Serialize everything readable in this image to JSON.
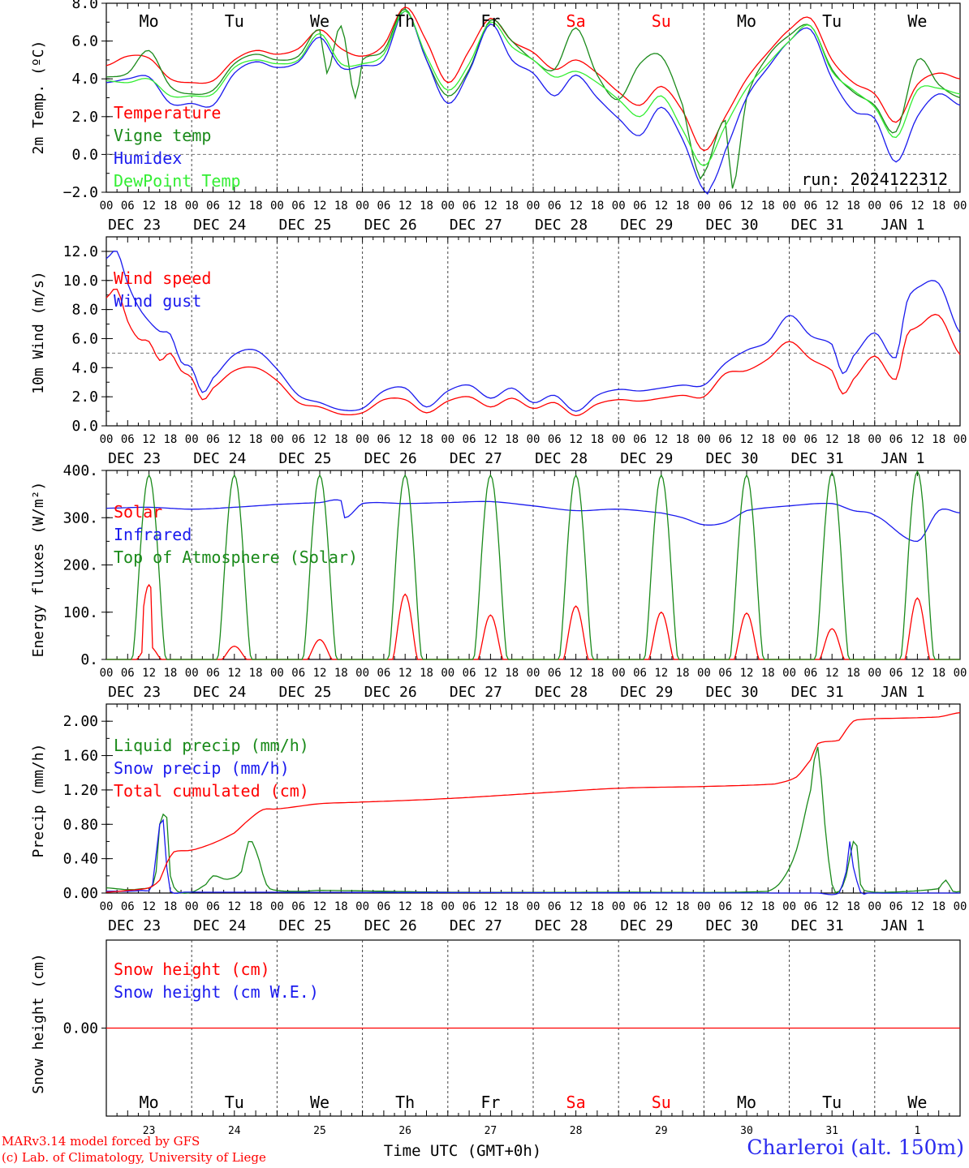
{
  "run_label": "run: 2024122312",
  "station": "Charleroi (alt. 150m)",
  "footer_credits": [
    "MARv3.14 model forced by GFS",
    "(c) Lab. of Climatology, University of Liege"
  ],
  "time_axis_label": "Time UTC (GMT+0h)",
  "day_names": [
    "Mo",
    "Tu",
    "We",
    "Th",
    "Fr",
    "Sa",
    "Su",
    "Mo",
    "Tu",
    "We"
  ],
  "weekend_days": [
    "Sa",
    "Su"
  ],
  "date_labels": [
    "DEC 23",
    "DEC 24",
    "DEC 25",
    "DEC 26",
    "DEC 27",
    "DEC 28",
    "DEC 29",
    "DEC 30",
    "DEC 31",
    "JAN  1"
  ],
  "day_numbers": [
    "23",
    "24",
    "25",
    "26",
    "27",
    "28",
    "29",
    "30",
    "31",
    "1"
  ],
  "hour_ticks": [
    "00",
    "06",
    "12",
    "18"
  ],
  "colors": {
    "red": "#ff0000",
    "green": "#1a8a1a",
    "blue": "#1a1aee",
    "lightgreen": "#33ee33",
    "grid": "#555555"
  },
  "chart_data": [
    {
      "type": "line",
      "ylabel": "2m Temp. (ºC)",
      "ylim": [
        -2,
        8
      ],
      "yticks": [
        "−2.0",
        "0.0",
        "2.0",
        "4.0",
        "6.0",
        "8.0"
      ],
      "ytick_values": [
        -2,
        0,
        2,
        4,
        6,
        8
      ],
      "reference_line": 0,
      "x_unit": "hours since 2024-12-23 00 UTC",
      "series": [
        {
          "name": "Temperature",
          "color": "#ff0000",
          "x": [
            0,
            6,
            12,
            18,
            24,
            30,
            36,
            42,
            48,
            54,
            60,
            66,
            72,
            78,
            84,
            90,
            96,
            102,
            108,
            114,
            120,
            126,
            132,
            138,
            144,
            150,
            156,
            162,
            168,
            174,
            180,
            186,
            192,
            198,
            204,
            210,
            216,
            222,
            228,
            234,
            240
          ],
          "values": [
            4.7,
            5.2,
            5.1,
            4.0,
            3.8,
            3.9,
            5.0,
            5.5,
            5.3,
            5.6,
            6.6,
            5.6,
            5.2,
            5.8,
            7.8,
            6.0,
            3.8,
            5.5,
            7.2,
            6.0,
            5.4,
            4.5,
            5.0,
            4.3,
            3.3,
            2.6,
            3.6,
            2.3,
            0.2,
            2.0,
            4.0,
            5.4,
            6.6,
            7.2,
            5.0,
            3.8,
            3.2,
            1.7,
            3.7,
            4.3,
            4.0
          ]
        },
        {
          "name": "Vigne temp",
          "color": "#1a8a1a",
          "x": [
            0,
            6,
            12,
            18,
            24,
            30,
            36,
            42,
            48,
            54,
            60,
            62,
            66,
            70,
            72,
            78,
            84,
            90,
            96,
            102,
            108,
            114,
            120,
            126,
            132,
            138,
            144,
            150,
            156,
            162,
            166,
            168,
            174,
            176,
            180,
            186,
            192,
            198,
            204,
            210,
            216,
            222,
            228,
            234,
            240
          ],
          "values": [
            4.1,
            4.3,
            5.5,
            3.6,
            3.2,
            3.4,
            4.8,
            5.3,
            5.0,
            5.2,
            6.6,
            4.3,
            6.8,
            3.0,
            5.0,
            5.5,
            7.7,
            5.0,
            3.1,
            4.5,
            7.1,
            6.0,
            5.0,
            4.5,
            6.7,
            4.2,
            2.9,
            4.8,
            5.2,
            2.6,
            -0.8,
            -1.0,
            1.8,
            -1.8,
            3.0,
            5.2,
            6.3,
            6.8,
            4.5,
            3.3,
            2.6,
            1.2,
            5.0,
            3.7,
            3.0
          ]
        },
        {
          "name": "Humidex",
          "color": "#1a1aee",
          "x": [
            0,
            6,
            12,
            18,
            24,
            30,
            36,
            42,
            48,
            54,
            60,
            66,
            72,
            78,
            84,
            90,
            96,
            102,
            108,
            114,
            120,
            126,
            132,
            138,
            144,
            150,
            156,
            162,
            168,
            170,
            174,
            180,
            186,
            192,
            198,
            204,
            210,
            216,
            222,
            228,
            234,
            240
          ],
          "values": [
            3.8,
            4.0,
            4.1,
            2.7,
            2.7,
            2.6,
            4.3,
            4.9,
            4.6,
            4.9,
            6.2,
            4.6,
            4.7,
            5.0,
            7.6,
            5.0,
            2.7,
            4.4,
            6.9,
            5.0,
            4.3,
            3.1,
            4.2,
            3.0,
            1.9,
            1.0,
            2.5,
            0.8,
            -1.9,
            -1.7,
            0.2,
            3.0,
            4.6,
            6.0,
            6.6,
            4.0,
            2.3,
            1.9,
            -0.4,
            2.0,
            3.2,
            2.6
          ]
        },
        {
          "name": "DewPoint Temp",
          "color": "#33ee33",
          "x": [
            0,
            6,
            12,
            18,
            24,
            30,
            36,
            42,
            48,
            54,
            60,
            66,
            72,
            78,
            84,
            90,
            96,
            102,
            108,
            114,
            120,
            126,
            132,
            138,
            144,
            150,
            156,
            162,
            168,
            174,
            180,
            186,
            192,
            198,
            204,
            210,
            216,
            222,
            228,
            234,
            240
          ],
          "values": [
            3.9,
            3.8,
            4.0,
            3.1,
            3.1,
            3.2,
            4.6,
            5.0,
            4.8,
            5.0,
            6.4,
            4.8,
            4.8,
            5.3,
            7.6,
            5.2,
            3.4,
            4.8,
            7.0,
            5.7,
            5.0,
            4.1,
            4.4,
            3.8,
            2.9,
            2.0,
            3.1,
            1.3,
            -0.6,
            1.5,
            3.5,
            4.8,
            6.0,
            6.8,
            4.4,
            3.4,
            2.5,
            0.9,
            3.4,
            3.5,
            3.2
          ]
        }
      ]
    },
    {
      "type": "line",
      "ylabel": "10m Wind (m/s)",
      "ylim": [
        0,
        13
      ],
      "yticks": [
        "0.0",
        "2.0",
        "4.0",
        "6.0",
        "8.0",
        "10.0",
        "12.0"
      ],
      "ytick_values": [
        0,
        2,
        4,
        6,
        8,
        10,
        12
      ],
      "reference_line": 5,
      "x_unit": "hours since 2024-12-23 00 UTC",
      "series": [
        {
          "name": "Wind speed",
          "color": "#ff0000",
          "x": [
            0,
            3,
            6,
            9,
            12,
            15,
            18,
            21,
            24,
            27,
            30,
            36,
            42,
            48,
            54,
            60,
            66,
            72,
            78,
            84,
            90,
            96,
            102,
            108,
            114,
            120,
            126,
            132,
            138,
            144,
            150,
            156,
            162,
            168,
            174,
            180,
            186,
            192,
            198,
            204,
            207,
            210,
            216,
            222,
            225,
            228,
            234,
            240
          ],
          "values": [
            8.8,
            9.4,
            7.2,
            6.0,
            5.8,
            4.5,
            5.0,
            3.8,
            3.3,
            1.8,
            2.6,
            3.8,
            4.0,
            3.1,
            1.6,
            1.3,
            0.8,
            0.9,
            1.8,
            1.8,
            0.9,
            1.7,
            2.0,
            1.3,
            1.9,
            1.2,
            1.6,
            0.7,
            1.5,
            1.8,
            1.7,
            1.9,
            2.1,
            2.0,
            3.6,
            3.8,
            4.6,
            5.8,
            4.6,
            3.8,
            2.2,
            3.2,
            4.8,
            3.2,
            6.2,
            6.8,
            7.6,
            4.9
          ]
        },
        {
          "name": "Wind gust",
          "color": "#1a1aee",
          "x": [
            0,
            3,
            6,
            9,
            12,
            15,
            18,
            21,
            24,
            27,
            30,
            36,
            42,
            48,
            54,
            60,
            66,
            72,
            78,
            84,
            90,
            96,
            102,
            108,
            114,
            120,
            126,
            132,
            138,
            144,
            150,
            156,
            162,
            168,
            174,
            180,
            186,
            192,
            198,
            204,
            207,
            210,
            216,
            222,
            225,
            228,
            234,
            240
          ],
          "values": [
            11.5,
            12.0,
            9.8,
            8.2,
            7.2,
            6.5,
            6.3,
            4.4,
            4.0,
            2.3,
            3.3,
            4.9,
            5.2,
            3.9,
            2.1,
            1.6,
            1.1,
            1.2,
            2.4,
            2.6,
            1.3,
            2.4,
            2.8,
            1.9,
            2.6,
            1.6,
            2.1,
            1.0,
            2.1,
            2.5,
            2.4,
            2.6,
            2.8,
            2.8,
            4.3,
            5.2,
            5.8,
            7.6,
            6.2,
            5.6,
            3.6,
            4.8,
            6.4,
            4.7,
            8.5,
            9.5,
            9.8,
            6.4
          ]
        }
      ]
    },
    {
      "type": "line",
      "ylabel": "Energy fluxes (W/m²)",
      "ylim": [
        0,
        400
      ],
      "yticks": [
        "0.",
        "100.",
        "200.",
        "300.",
        "400."
      ],
      "ytick_values": [
        0,
        100,
        200,
        300,
        400
      ],
      "x_unit": "hours since 2024-12-23 00 UTC",
      "series": [
        {
          "name": "Solar",
          "color": "#ff0000",
          "daily_peaks": [
            158,
            28,
            42,
            138,
            94,
            113,
            100,
            98,
            65,
            130
          ]
        },
        {
          "name": "Infrared",
          "color": "#1a1aee",
          "x": [
            0,
            12,
            24,
            36,
            48,
            60,
            66,
            67,
            72,
            84,
            96,
            108,
            120,
            132,
            144,
            156,
            162,
            168,
            174,
            180,
            192,
            204,
            210,
            216,
            228,
            234,
            240
          ],
          "values": [
            320,
            322,
            318,
            322,
            328,
            332,
            336,
            300,
            330,
            330,
            332,
            334,
            325,
            315,
            318,
            310,
            300,
            285,
            290,
            315,
            325,
            330,
            315,
            305,
            250,
            315,
            310
          ]
        },
        {
          "name": "Top of Atmosphere (Solar)",
          "color": "#1a8a1a",
          "daily_peaks": [
            390,
            390,
            390,
            390,
            390,
            390,
            390,
            390,
            395,
            398
          ]
        }
      ]
    },
    {
      "type": "line",
      "ylabel": "Precip (mm/h)",
      "ylim": [
        0,
        2.2
      ],
      "yticks": [
        "0.00",
        "0.40",
        "0.80",
        "1.20",
        "1.60",
        "2.00"
      ],
      "ytick_values": [
        0,
        0.4,
        0.8,
        1.2,
        1.6,
        2.0
      ],
      "x_unit": "hours since 2024-12-23 00 UTC",
      "series": [
        {
          "name": "Liquid precip (mm/h)",
          "color": "#1a8a1a",
          "x": [
            0,
            6,
            10,
            13,
            14,
            15,
            17,
            18,
            20,
            24,
            28,
            30,
            34,
            38,
            40,
            42,
            45,
            48,
            55,
            60,
            96,
            144,
            186,
            190,
            194,
            198,
            200,
            202,
            204,
            206,
            208,
            210,
            211,
            212,
            214,
            220,
            234,
            236,
            238,
            240
          ],
          "values": [
            0.06,
            0.04,
            0.05,
            0.08,
            0.25,
            0.8,
            0.88,
            0.2,
            0.02,
            0.01,
            0.1,
            0.2,
            0.16,
            0.25,
            0.6,
            0.5,
            0.1,
            0.03,
            0.02,
            0.03,
            0.01,
            0.01,
            0.02,
            0.15,
            0.5,
            1.2,
            1.7,
            0.8,
            0.1,
            0.02,
            0.2,
            0.6,
            0.55,
            0.1,
            0.02,
            0.01,
            0.05,
            0.15,
            0.02,
            0.02
          ]
        },
        {
          "name": "Snow precip (mm/h)",
          "color": "#1a1aee",
          "x": [
            0,
            10,
            13,
            15,
            16,
            17,
            18,
            22,
            24,
            200,
            206,
            208,
            209,
            210,
            212,
            214,
            240
          ],
          "values": [
            0.02,
            0.03,
            0.1,
            0.8,
            0.85,
            0.3,
            0.02,
            0.01,
            0.01,
            0.0,
            0.0,
            0.25,
            0.6,
            0.3,
            0.01,
            0.0,
            0.0
          ]
        },
        {
          "name": "Total cumulated (cm)",
          "color": "#ff0000",
          "x": [
            0,
            6,
            12,
            15,
            17,
            19,
            24,
            30,
            36,
            40,
            44,
            48,
            60,
            72,
            96,
            120,
            144,
            168,
            188,
            194,
            198,
            200,
            206,
            208,
            210,
            212,
            216,
            234,
            240
          ],
          "values": [
            0.01,
            0.03,
            0.06,
            0.15,
            0.35,
            0.48,
            0.5,
            0.58,
            0.7,
            0.85,
            0.97,
            0.98,
            1.04,
            1.06,
            1.1,
            1.16,
            1.22,
            1.24,
            1.27,
            1.35,
            1.55,
            1.74,
            1.78,
            1.9,
            2.0,
            2.02,
            2.03,
            2.05,
            2.1
          ]
        }
      ]
    },
    {
      "type": "line",
      "ylabel": "Snow height (cm)",
      "ylim": [
        -1,
        1
      ],
      "yticks": [
        "0.00"
      ],
      "ytick_values": [
        0
      ],
      "x_unit": "hours since 2024-12-23 00 UTC",
      "series": [
        {
          "name": "Snow height (cm)",
          "color": "#ff0000",
          "x": [
            0,
            240
          ],
          "values": [
            0,
            0
          ]
        },
        {
          "name": "Snow height (cm W.E.)",
          "color": "#1a1aee",
          "x": [],
          "values": []
        }
      ]
    }
  ]
}
